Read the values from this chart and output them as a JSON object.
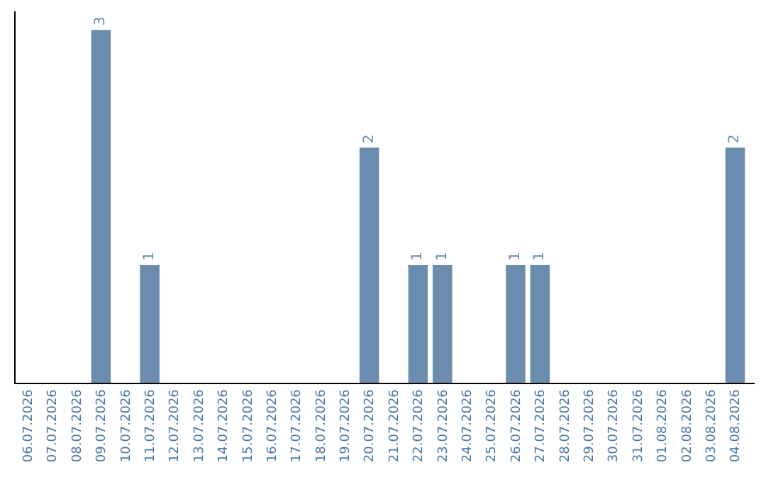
{
  "chart_data": {
    "type": "bar",
    "categories": [
      "06.07.2026",
      "07.07.2026",
      "08.07.2026",
      "09.07.2026",
      "10.07.2026",
      "11.07.2026",
      "12.07.2026",
      "13.07.2026",
      "14.07.2026",
      "15.07.2026",
      "16.07.2026",
      "17.07.2026",
      "18.07.2026",
      "19.07.2026",
      "20.07.2026",
      "21.07.2026",
      "22.07.2026",
      "23.07.2026",
      "24.07.2026",
      "25.07.2026",
      "26.07.2026",
      "27.07.2026",
      "28.07.2026",
      "29.07.2026",
      "30.07.2026",
      "31.07.2026",
      "01.08.2026",
      "02.08.2026",
      "03.08.2026",
      "04.08.2026"
    ],
    "values": [
      0,
      0,
      0,
      3,
      0,
      1,
      0,
      0,
      0,
      0,
      0,
      0,
      0,
      0,
      2,
      0,
      1,
      1,
      0,
      0,
      1,
      1,
      0,
      0,
      0,
      0,
      0,
      0,
      0,
      2
    ],
    "value_labels": [
      null,
      null,
      null,
      "3",
      null,
      "1",
      null,
      null,
      null,
      null,
      null,
      null,
      null,
      null,
      "2",
      null,
      "1",
      "1",
      null,
      null,
      "1",
      "1",
      null,
      null,
      null,
      null,
      null,
      null,
      null,
      "2"
    ],
    "color": "#6a8caf",
    "legend": false
  }
}
